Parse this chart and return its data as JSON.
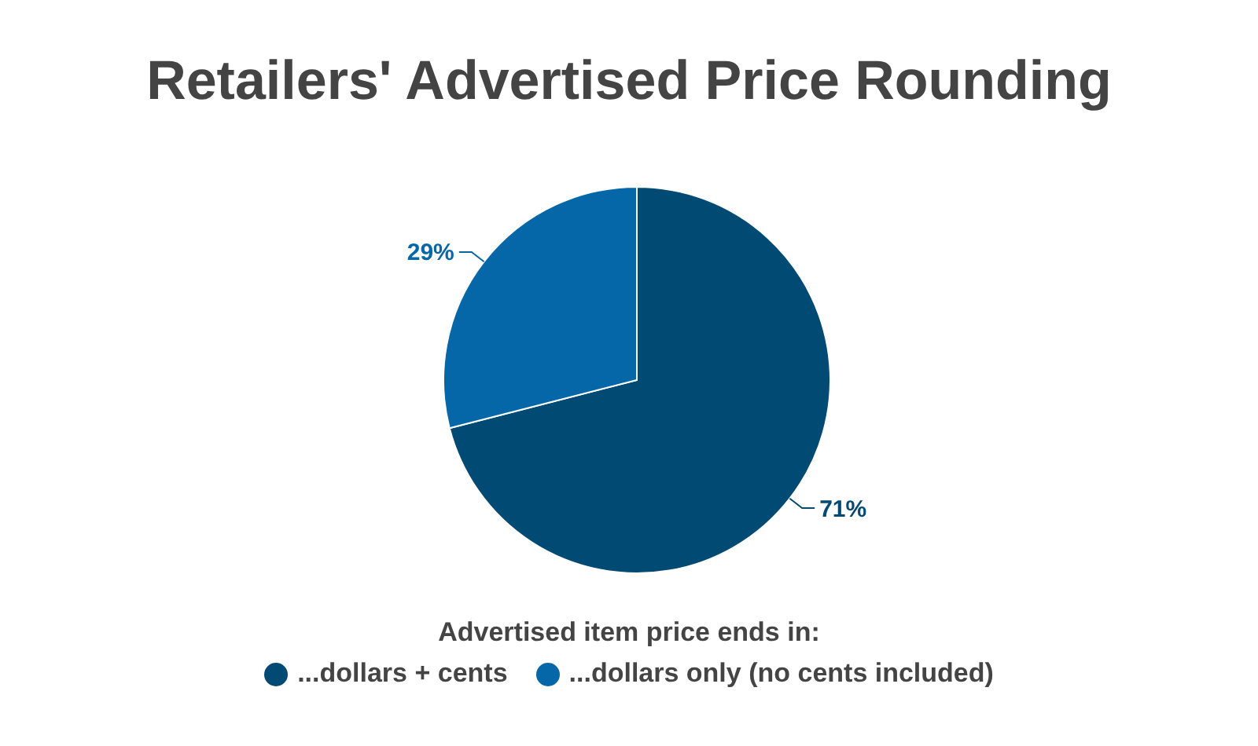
{
  "chart_data": {
    "type": "pie",
    "title": "Retailers' Advertised Price Rounding",
    "categories": [
      "...dollars + cents",
      "...dollars only (no cents included)"
    ],
    "values": [
      71,
      29
    ],
    "colors": [
      "#004a74",
      "#0567a7"
    ],
    "value_labels": [
      "71%",
      "29%"
    ],
    "legend": "bottom",
    "legend_title": "Advertised item price ends in:"
  }
}
